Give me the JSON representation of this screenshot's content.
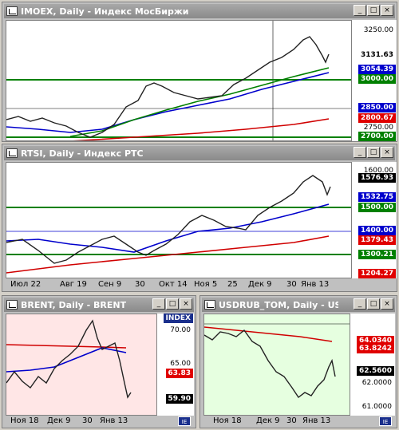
{
  "panes": {
    "imoex": {
      "title": "IMOEX, Daily - Индекс МосБиржи",
      "yticks": [
        "3250.00",
        "2750.00"
      ],
      "tags": [
        {
          "text": "3131.63",
          "color": "#000000",
          "bg": "#ffffff",
          "arrow": true
        },
        {
          "text": "3054.39",
          "color": "#ffffff",
          "bg": "#0000cc"
        },
        {
          "text": "3000.00",
          "color": "#ffffff",
          "bg": "#008000"
        },
        {
          "text": "2850.00",
          "color": "#ffffff",
          "bg": "#0000cc"
        },
        {
          "text": "2800.67",
          "color": "#ffffff",
          "bg": "#e00000"
        },
        {
          "text": "2700.00",
          "color": "#ffffff",
          "bg": "#008000"
        }
      ]
    },
    "rtsi": {
      "title": "RTSI, Daily - Индекс РТС",
      "yticks": [
        "1600.00"
      ],
      "tags": [
        {
          "text": "1576.93",
          "color": "#ffffff",
          "bg": "#000000"
        },
        {
          "text": "1532.75",
          "color": "#ffffff",
          "bg": "#0000cc"
        },
        {
          "text": "1500.00",
          "color": "#ffffff",
          "bg": "#008000"
        },
        {
          "text": "1400.00",
          "color": "#ffffff",
          "bg": "#0000cc"
        },
        {
          "text": "1379.43",
          "color": "#ffffff",
          "bg": "#e00000"
        },
        {
          "text": "1300.21",
          "color": "#ffffff",
          "bg": "#008000"
        },
        {
          "text": "1204.27",
          "color": "#ffffff",
          "bg": "#e00000"
        }
      ],
      "xlabels": [
        "Июл 22",
        "Авг 19",
        "Сен 9",
        "30",
        "Окт 14",
        "Ноя 5",
        "25",
        "Дек 9",
        "30",
        "Янв 13"
      ]
    },
    "brent": {
      "title": "BRENT, Daily - BRENT",
      "index_label": "INDEX",
      "yticks": [
        "70.00",
        "65.00"
      ],
      "tags": [
        {
          "text": "63.83",
          "color": "#ffffff",
          "bg": "#e00000"
        },
        {
          "text": "59.90",
          "color": "#ffffff",
          "bg": "#000000",
          "arrow": true
        }
      ],
      "xlabels": [
        "Ноя 18",
        "Дек 9",
        "30",
        "Янв 13"
      ]
    },
    "usdrub": {
      "title": "USDRUB_TOM, Daily - USDR...",
      "yticks": [
        "62.0000",
        "61.0000"
      ],
      "tags": [
        {
          "text": "64.0340",
          "color": "#ffffff",
          "bg": "#e00000"
        },
        {
          "text": "63.8242",
          "color": "#ffffff",
          "bg": "#e00000"
        },
        {
          "text": "62.5600",
          "color": "#ffffff",
          "bg": "#000000",
          "arrow": true
        }
      ],
      "xlabels": [
        "Ноя 18",
        "Дек 9",
        "30",
        "Янв 13"
      ]
    }
  },
  "window_buttons": {
    "minimize": "_",
    "maximize": "□",
    "close": "×"
  },
  "colors": {
    "ma_blue": "#0000cc",
    "ma_red": "#d00000",
    "support_green": "#008000",
    "bg_brent": "#ffe6e6",
    "bg_usdrub": "#e6ffe0"
  }
}
